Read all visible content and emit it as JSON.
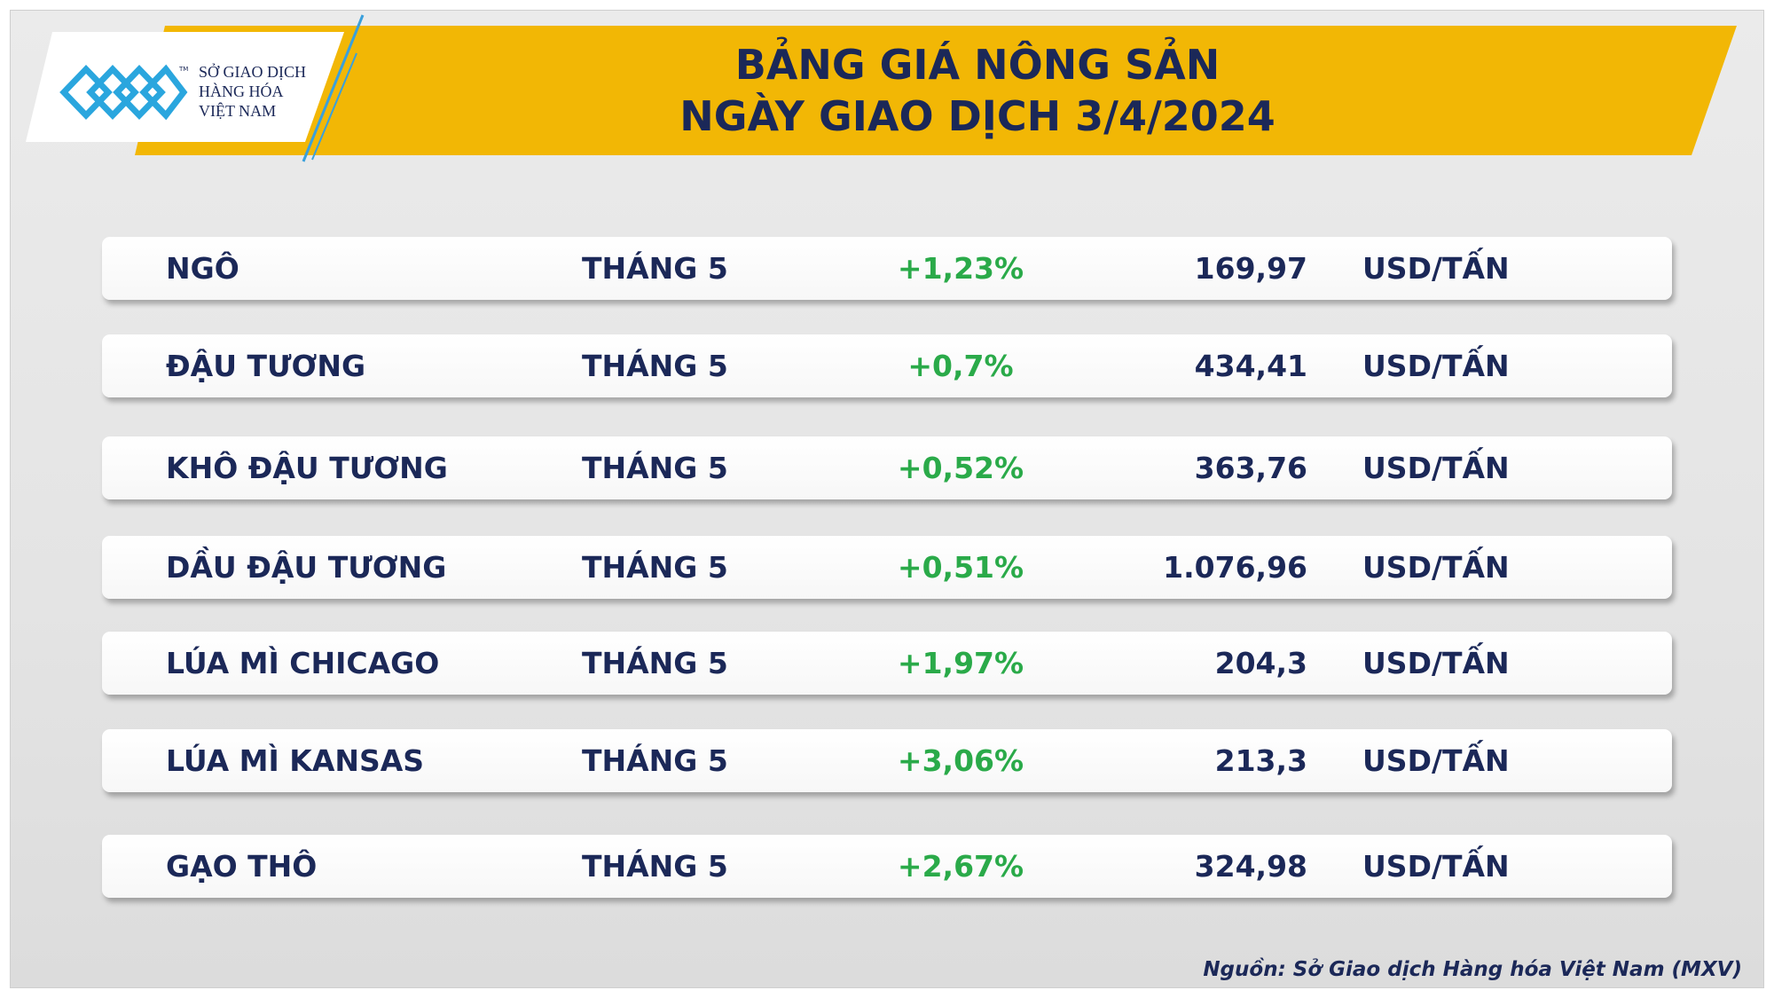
{
  "logo": {
    "tm": "TM",
    "lines": [
      "SỞ GIAO DỊCH",
      "HÀNG HÓA",
      "VIỆT NAM"
    ]
  },
  "header": {
    "title": [
      "BẢNG GIÁ NÔNG SẢN",
      "NGÀY GIAO DỊCH 3/4/2024"
    ]
  },
  "table": {
    "rows": [
      [
        "NGÔ",
        "THÁNG 5",
        "+1,23%",
        "169,97",
        "USD/TẤN"
      ],
      [
        "ĐẬU TƯƠNG",
        "THÁNG 5",
        "+0,7%",
        "434,41",
        "USD/TẤN"
      ],
      [
        "KHÔ ĐẬU TƯƠNG",
        "THÁNG 5",
        "+0,52%",
        "363,76",
        "USD/TẤN"
      ],
      [
        "DẦU ĐẬU TƯƠNG",
        "THÁNG 5",
        "+0,51%",
        "1.076,96",
        "USD/TẤN"
      ],
      [
        "LÚA MÌ CHICAGO",
        "THÁNG 5",
        "+1,97%",
        "204,3",
        "USD/TẤN"
      ],
      [
        "LÚA MÌ KANSAS",
        "THÁNG 5",
        "+3,06%",
        "213,3",
        "USD/TẤN"
      ],
      [
        "GẠO THÔ",
        "THÁNG 5",
        "+2,67%",
        "324,98",
        "USD/TẤN"
      ]
    ]
  },
  "footer": {
    "source": "Nguồn: Sở Giao dịch Hàng hóa Việt Nam (MXV)"
  }
}
